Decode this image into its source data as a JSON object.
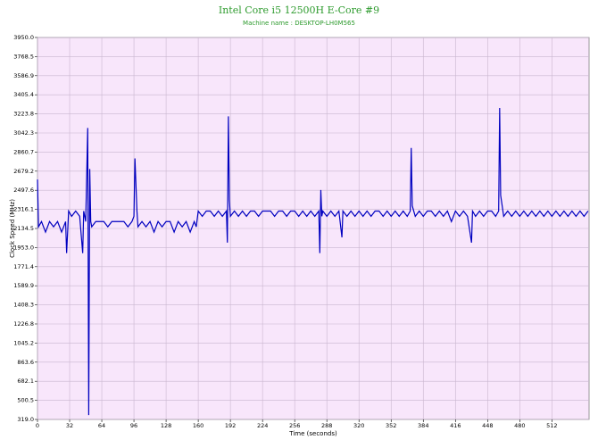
{
  "chart_data": {
    "type": "line",
    "title": "Intel Core i5 12500H E-Core #9",
    "subtitle": "Machine name : DESKTOP-LH0M565",
    "y_label": "Clock Speed (MHz)",
    "x_label": "Time (seconds)",
    "grid": true,
    "xlim": [
      0,
      549
    ],
    "ylim": [
      319,
      3950
    ],
    "xticks": [
      0,
      32,
      64,
      96,
      128,
      160,
      192,
      224,
      256,
      288,
      320,
      352,
      384,
      416,
      448,
      480,
      512
    ],
    "yticks": [
      {
        "value": 319,
        "label": "319.0"
      },
      500.5,
      682.1,
      863.6,
      1045.2,
      1226.8,
      1408.3,
      1589.9,
      1771.4,
      {
        "value": 1953,
        "label": "1953.0"
      },
      2134.5,
      2316.1,
      2497.6,
      2679.2,
      2860.7,
      3042.3,
      3223.8,
      3405.4,
      3586.9,
      3768.5,
      {
        "value": 3950,
        "label": "3950.0"
      }
    ],
    "x": [
      0,
      1,
      4,
      8,
      12,
      16,
      20,
      24,
      28,
      29,
      31,
      34,
      38,
      42,
      45,
      46,
      48,
      50,
      51,
      52,
      53,
      54,
      58,
      62,
      66,
      70,
      74,
      78,
      82,
      86,
      90,
      94,
      96,
      97,
      99,
      100,
      104,
      108,
      112,
      116,
      120,
      124,
      128,
      132,
      136,
      140,
      144,
      148,
      152,
      156,
      158,
      160,
      164,
      168,
      172,
      176,
      180,
      184,
      188,
      189,
      190,
      191,
      192,
      196,
      200,
      204,
      208,
      212,
      216,
      220,
      224,
      228,
      232,
      236,
      240,
      244,
      248,
      252,
      256,
      260,
      264,
      268,
      272,
      276,
      280,
      281,
      282,
      283,
      284,
      288,
      292,
      296,
      300,
      303,
      304,
      308,
      312,
      316,
      320,
      324,
      328,
      332,
      336,
      340,
      344,
      348,
      352,
      356,
      360,
      364,
      368,
      371,
      372,
      373,
      376,
      380,
      384,
      388,
      392,
      396,
      400,
      404,
      408,
      412,
      416,
      420,
      424,
      428,
      432,
      433,
      436,
      440,
      444,
      448,
      452,
      456,
      459,
      460,
      461,
      464,
      468,
      472,
      476,
      480,
      484,
      488,
      492,
      496,
      500,
      504,
      508,
      512,
      516,
      520,
      524,
      528,
      532,
      536,
      540,
      544,
      548
    ],
    "series": [
      {
        "name": "Clock Speed",
        "color": "#0000c0",
        "values": [
          2600,
          2150,
          2200,
          2100,
          2200,
          2150,
          2200,
          2100,
          2200,
          1900,
          2300,
          2250,
          2300,
          2250,
          1900,
          2300,
          2200,
          3090,
          360,
          2700,
          2200,
          2150,
          2200,
          2200,
          2200,
          2150,
          2200,
          2200,
          2200,
          2200,
          2150,
          2200,
          2250,
          2800,
          2300,
          2150,
          2200,
          2150,
          2200,
          2100,
          2200,
          2150,
          2200,
          2200,
          2100,
          2200,
          2150,
          2200,
          2100,
          2200,
          2150,
          2300,
          2250,
          2300,
          2300,
          2250,
          2300,
          2250,
          2300,
          2000,
          3200,
          2400,
          2250,
          2300,
          2250,
          2300,
          2250,
          2300,
          2300,
          2250,
          2300,
          2300,
          2300,
          2250,
          2300,
          2300,
          2250,
          2300,
          2300,
          2250,
          2300,
          2250,
          2300,
          2250,
          2300,
          1900,
          2500,
          2250,
          2300,
          2250,
          2300,
          2250,
          2300,
          2050,
          2300,
          2250,
          2300,
          2250,
          2300,
          2250,
          2300,
          2250,
          2300,
          2300,
          2250,
          2300,
          2250,
          2300,
          2250,
          2300,
          2250,
          2300,
          2900,
          2350,
          2250,
          2300,
          2250,
          2300,
          2300,
          2250,
          2300,
          2250,
          2300,
          2200,
          2300,
          2250,
          2300,
          2250,
          2000,
          2300,
          2250,
          2300,
          2250,
          2300,
          2300,
          2250,
          2300,
          3280,
          2450,
          2250,
          2300,
          2250,
          2300,
          2250,
          2300,
          2250,
          2300,
          2250,
          2300,
          2250,
          2300,
          2250,
          2300,
          2250,
          2300,
          2250,
          2300,
          2250,
          2300,
          2250,
          2300
        ]
      }
    ]
  }
}
